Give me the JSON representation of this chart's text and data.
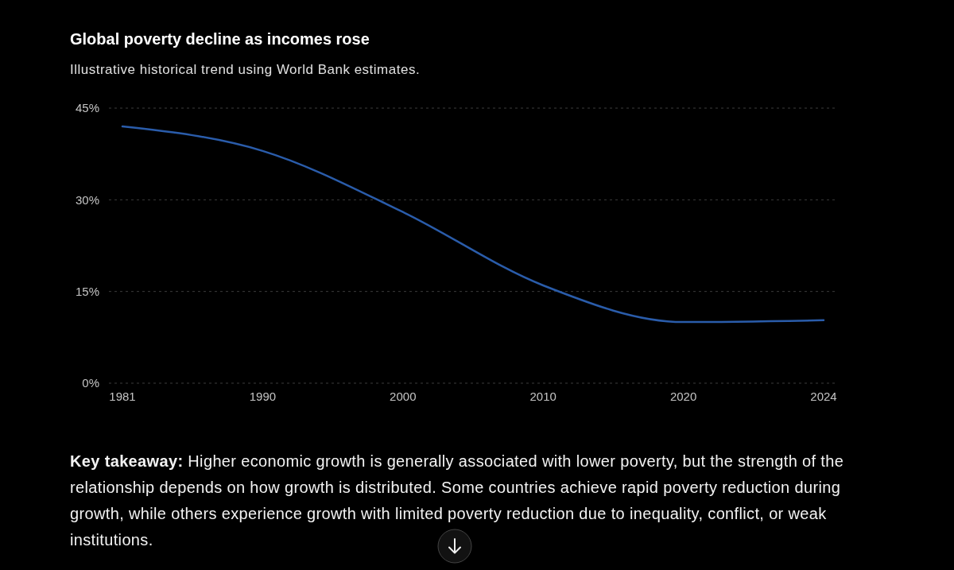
{
  "chart_data": {
    "type": "line",
    "title": "Global poverty decline as incomes rose",
    "subtitle": "Illustrative historical trend using World Bank estimates.",
    "categories": [
      "1981",
      "1990",
      "2000",
      "2010",
      "2020",
      "2024"
    ],
    "values": [
      42,
      38,
      28,
      16,
      10,
      10.3
    ],
    "color": "#2a5caa",
    "ylim": [
      0,
      45
    ],
    "yticks": [
      {
        "value": 0,
        "label": "0%"
      },
      {
        "value": 15,
        "label": "15%"
      },
      {
        "value": 30,
        "label": "30%"
      },
      {
        "value": 45,
        "label": "45%"
      }
    ],
    "grid": "y",
    "marker": "none",
    "line_style": "solid",
    "annotations": [
      "Key takeaway: Higher economic growth is generally associated with lower poverty, but the strength of the relationship depends on how growth is distributed. Some countries achieve rapid poverty reduction during growth, while others experience growth with limited poverty reduction due to inequality, conflict, or weak institutions."
    ]
  }
}
